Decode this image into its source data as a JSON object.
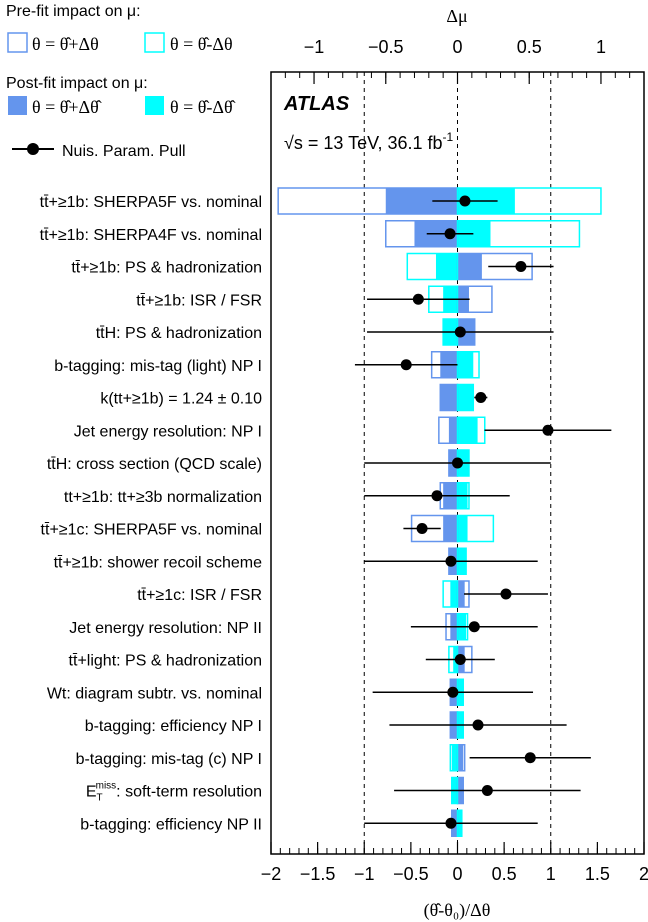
{
  "chart_data": {
    "type": "ranking",
    "legend": {
      "prefit_title": "Pre-fit impact on μ:",
      "prefit_up": "θ = θ̂+Δθ",
      "prefit_down": "θ = θ̂-Δθ",
      "postfit_title": "Post-fit impact on μ:",
      "postfit_up": "θ = θ̂+Δθ̂",
      "postfit_down": "θ = θ̂-Δθ̂",
      "pull": "Nuis. Param. Pull"
    },
    "atlas_label": "ATLAS",
    "energy_label": "√s = 13 TeV, 36.1 fb",
    "energy_sup": "-1",
    "top_axis": {
      "label": "Δμ",
      "range": [
        -1.3,
        1.3
      ],
      "ticks": [
        "−1",
        "−0.5",
        "0",
        "0.5",
        "1"
      ],
      "tick_values": [
        -1,
        -0.5,
        0,
        0.5,
        1
      ]
    },
    "bottom_axis": {
      "label": "(θ̂-θ₀)/Δθ",
      "range": [
        -2,
        2
      ],
      "ticks": [
        "−2",
        "−1.5",
        "−1",
        "−0.5",
        "0",
        "0.5",
        "1",
        "1.5",
        "2"
      ],
      "tick_values": [
        -2,
        -1.5,
        -1,
        -0.5,
        0,
        0.5,
        1,
        1.5,
        2
      ]
    },
    "colors": {
      "up": "#6495ED",
      "down": "#00FFFF"
    },
    "parameters": [
      {
        "label": "tt̄+≥1b: SHERPA5F vs. nominal",
        "prefit_up": -1.25,
        "prefit_down": 1.0,
        "postfit_up": -0.5,
        "postfit_down": 0.4,
        "pull": 0.08,
        "err_lo": 0.35,
        "err_hi": 0.35
      },
      {
        "label": "tt̄+≥1b: SHERPA4F vs. nominal",
        "prefit_up": -0.5,
        "prefit_down": 0.85,
        "postfit_up": -0.3,
        "postfit_down": 0.23,
        "pull": -0.08,
        "err_lo": 0.25,
        "err_hi": 0.25
      },
      {
        "label": "tt̄+≥1b: PS & hadronization",
        "prefit_up": 0.52,
        "prefit_down": -0.35,
        "postfit_up": 0.17,
        "postfit_down": -0.15,
        "pull": 0.68,
        "err_lo": 0.35,
        "err_hi": 0.35
      },
      {
        "label": "tt̄+≥1b: ISR / FSR",
        "prefit_up": 0.24,
        "prefit_down": -0.2,
        "postfit_up": 0.08,
        "postfit_down": -0.1,
        "pull": -0.42,
        "err_lo": 0.55,
        "err_hi": 0.55
      },
      {
        "label": "tt̄H: PS & hadronization",
        "prefit_up": 0.12,
        "prefit_down": -0.1,
        "postfit_up": 0.12,
        "postfit_down": -0.1,
        "pull": 0.03,
        "err_lo": 1.0,
        "err_hi": 1.0
      },
      {
        "label": "b-tagging: mis-tag (light) NP I",
        "prefit_up": -0.18,
        "prefit_down": 0.15,
        "postfit_up": -0.12,
        "postfit_down": 0.11,
        "pull": -0.55,
        "err_lo": 0.55,
        "err_hi": 0.55
      },
      {
        "label": "k(tt+≥1b) = 1.24 ± 0.10",
        "prefit_up": -0.12,
        "prefit_down": 0.11,
        "postfit_up": -0.12,
        "postfit_down": 0.11,
        "pull": 0.25,
        "err_lo": 0.07,
        "err_hi": 0.07
      },
      {
        "label": "Jet energy resolution: NP I",
        "prefit_up": -0.13,
        "prefit_down": 0.19,
        "postfit_up": -0.06,
        "postfit_down": 0.14,
        "pull": 0.97,
        "err_lo": 0.68,
        "err_hi": 0.68
      },
      {
        "label": "tt̄H: cross section (QCD scale)",
        "prefit_up": -0.06,
        "prefit_down": 0.08,
        "postfit_up": -0.06,
        "postfit_down": 0.08,
        "pull": 0.0,
        "err_lo": 1.0,
        "err_hi": 1.0
      },
      {
        "label": "tt+≥1b: tt+≥3b normalization",
        "prefit_up": -0.12,
        "prefit_down": 0.08,
        "postfit_up": -0.1,
        "postfit_down": 0.07,
        "pull": -0.22,
        "err_lo": 0.78,
        "err_hi": 0.78
      },
      {
        "label": "tt̄+≥1c: SHERPA5F vs. nominal",
        "prefit_up": -0.32,
        "prefit_down": 0.25,
        "postfit_up": -0.1,
        "postfit_down": 0.07,
        "pull": -0.38,
        "err_lo": 0.2,
        "err_hi": 0.2
      },
      {
        "label": "tt̄+≥1b: shower recoil scheme",
        "prefit_up": -0.06,
        "prefit_down": 0.06,
        "postfit_up": -0.06,
        "postfit_down": 0.06,
        "pull": -0.07,
        "err_lo": 0.93,
        "err_hi": 0.93
      },
      {
        "label": "tt̄+≥1c: ISR / FSR",
        "prefit_up": 0.08,
        "prefit_down": -0.1,
        "postfit_up": 0.05,
        "postfit_down": -0.05,
        "pull": 0.52,
        "err_lo": 0.45,
        "err_hi": 0.45
      },
      {
        "label": "Jet energy resolution: NP II",
        "prefit_up": -0.08,
        "prefit_down": 0.07,
        "postfit_up": -0.05,
        "postfit_down": 0.06,
        "pull": 0.18,
        "err_lo": 0.68,
        "err_hi": 0.68
      },
      {
        "label": "tt̄+light: PS & hadronization",
        "prefit_up": 0.1,
        "prefit_down": -0.06,
        "postfit_up": 0.05,
        "postfit_down": -0.03,
        "pull": 0.03,
        "err_lo": 0.37,
        "err_hi": 0.37
      },
      {
        "label": "Wt: diagram subtr. vs. nominal",
        "prefit_up": -0.05,
        "prefit_down": 0.04,
        "postfit_up": -0.05,
        "postfit_down": 0.04,
        "pull": -0.05,
        "err_lo": 0.86,
        "err_hi": 0.86
      },
      {
        "label": "b-tagging: efficiency NP I",
        "prefit_up": -0.05,
        "prefit_down": 0.04,
        "postfit_up": -0.05,
        "postfit_down": 0.04,
        "pull": 0.22,
        "err_lo": 0.95,
        "err_hi": 0.95
      },
      {
        "label": "b-tagging: mis-tag (c) NP I",
        "prefit_up": 0.05,
        "prefit_down": -0.05,
        "postfit_up": 0.04,
        "postfit_down": -0.04,
        "pull": 0.78,
        "err_lo": 0.65,
        "err_hi": 0.65
      },
      {
        "label": "soft-term resolution",
        "label_prefix": "E",
        "label_sub": "T",
        "label_sup": "miss",
        "prefit_up": 0.04,
        "prefit_down": -0.04,
        "postfit_up": 0.04,
        "postfit_down": -0.04,
        "pull": 0.32,
        "err_lo": 1.0,
        "err_hi": 1.0
      },
      {
        "label": "b-tagging: efficiency NP II",
        "prefit_up": -0.04,
        "prefit_down": 0.03,
        "postfit_up": -0.04,
        "postfit_down": 0.03,
        "pull": -0.07,
        "err_lo": 0.93,
        "err_hi": 0.93
      }
    ]
  }
}
